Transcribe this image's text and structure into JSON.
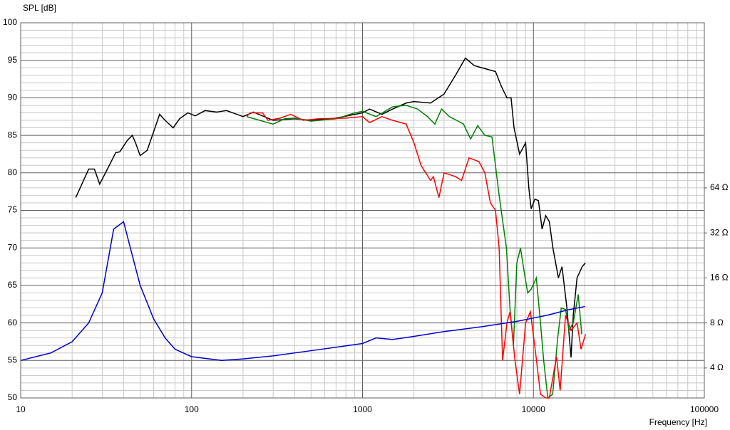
{
  "chart_data": {
    "type": "line",
    "ylabel": "SPL [dB]",
    "xlabel": "Frequency [Hz]",
    "xscale": "log",
    "y2scale": "log",
    "grid": true,
    "xlim": [
      10,
      100000
    ],
    "xticks": [
      10,
      100,
      1000,
      10000,
      100000
    ],
    "ylim": [
      50,
      100
    ],
    "yticks": [
      50,
      55,
      60,
      65,
      70,
      75,
      80,
      85,
      90,
      95,
      100
    ],
    "y2lim": [
      2.52,
      812.7
    ],
    "y2ticks": [
      {
        "value": 4,
        "label": "4 Ω"
      },
      {
        "value": 8,
        "label": "8 Ω"
      },
      {
        "value": 16,
        "label": "16 Ω"
      },
      {
        "value": 32,
        "label": "32 Ω"
      },
      {
        "value": 64,
        "label": "64 Ω"
      }
    ],
    "series": [
      {
        "color": "#000000",
        "x": [
          21,
          25,
          27,
          29,
          33,
          36,
          38,
          42,
          45,
          47,
          50,
          55,
          60,
          65,
          70,
          78,
          85,
          95,
          105,
          120,
          140,
          160,
          200,
          230,
          300,
          400,
          500,
          700,
          1000,
          1100,
          1300,
          1500,
          1800,
          2000,
          2500,
          3000,
          3500,
          4000,
          4500,
          5000,
          6000,
          6500,
          7000,
          7400,
          7700,
          8300,
          9000,
          9400,
          9700,
          10200,
          10700,
          11240,
          11800,
          12390,
          13000,
          14000,
          14700,
          15700,
          16600,
          17100,
          18000,
          19300,
          20170
        ],
        "values": [
          76.7,
          80.5,
          80.5,
          78.5,
          81,
          82.7,
          82.8,
          84.3,
          85,
          84,
          82.3,
          83,
          85.5,
          87.8,
          87,
          86,
          87.2,
          88,
          87.6,
          88.3,
          88.1,
          88.3,
          87.5,
          88.1,
          87,
          87.2,
          87,
          87.3,
          88,
          88.5,
          87.8,
          88.5,
          89.3,
          89.5,
          89.3,
          90.5,
          93,
          95.3,
          94.3,
          94,
          93.5,
          91.5,
          90,
          90,
          86,
          82.5,
          84,
          78,
          75.2,
          76.5,
          76.3,
          72.5,
          74.3,
          73.5,
          70,
          66,
          67.5,
          62,
          55.4,
          61,
          66,
          67.5,
          68
        ]
      },
      {
        "color": "#008000",
        "x": [
          210,
          250,
          300,
          350,
          400,
          500,
          700,
          900,
          1000,
          1200,
          1500,
          1800,
          2100,
          2400,
          2650,
          2900,
          3220,
          3550,
          3900,
          4290,
          4720,
          5200,
          5720,
          6300,
          6950,
          7290,
          7640,
          8000,
          8400,
          8800,
          9260,
          9700,
          10400,
          11000,
          11480,
          12140,
          12960,
          13870,
          14550,
          15410,
          16150,
          17100,
          18300,
          19170
        ],
        "values": [
          87.5,
          87,
          86.5,
          87.2,
          87.3,
          86.9,
          87.2,
          88,
          88.2,
          87.5,
          88.8,
          89,
          88.5,
          87.5,
          86.5,
          88.5,
          87.5,
          87,
          86.5,
          84.5,
          86.3,
          85,
          84.8,
          77,
          70,
          62,
          57,
          68,
          70,
          67,
          64,
          64.5,
          66,
          60,
          55,
          50,
          50.5,
          58,
          62,
          61.8,
          59,
          60,
          63.8,
          58.5
        ]
      },
      {
        "color": "#ff0000",
        "x": [
          210,
          220,
          260,
          280,
          330,
          380,
          450,
          550,
          800,
          1000,
          1100,
          1300,
          1500,
          1800,
          2000,
          2200,
          2500,
          2600,
          2800,
          3000,
          3500,
          3800,
          4200,
          4800,
          5200,
          5600,
          6000,
          6300,
          6600,
          7000,
          7300,
          7800,
          8300,
          9000,
          9600,
          10300,
          11000,
          11800,
          12390,
          13650,
          14340,
          15410,
          16600,
          18000,
          19000,
          20170
        ],
        "values": [
          87.5,
          88,
          88,
          87,
          87.3,
          87.8,
          87,
          87.2,
          87.3,
          87.5,
          86.7,
          87.5,
          87,
          86.5,
          84,
          81,
          79,
          79.5,
          76.7,
          80,
          79.5,
          79,
          82,
          81.5,
          80,
          76,
          75,
          70,
          55,
          60,
          61.5,
          55,
          50.5,
          60,
          61.5,
          56,
          50.5,
          50,
          50,
          55.5,
          51,
          61,
          59,
          60,
          56.5,
          58.5
        ]
      },
      {
        "color": "#0000cc",
        "axis": "y2",
        "x": [
          10,
          15,
          20,
          25,
          30,
          35,
          40,
          45,
          50,
          60,
          70,
          80,
          100,
          150,
          200,
          300,
          500,
          700,
          1000,
          1200,
          1500,
          2000,
          3000,
          5000,
          8000,
          12000,
          16000,
          20000
        ],
        "values": [
          4.49,
          5.04,
          5.99,
          8,
          12.7,
          33.9,
          38,
          22.6,
          14.3,
          8.5,
          6.35,
          5.34,
          4.76,
          4.49,
          4.6,
          4.82,
          5.22,
          5.5,
          5.83,
          6.35,
          6.2,
          6.5,
          7.0,
          7.55,
          8.2,
          9.0,
          9.8,
          10.3
        ]
      }
    ]
  }
}
